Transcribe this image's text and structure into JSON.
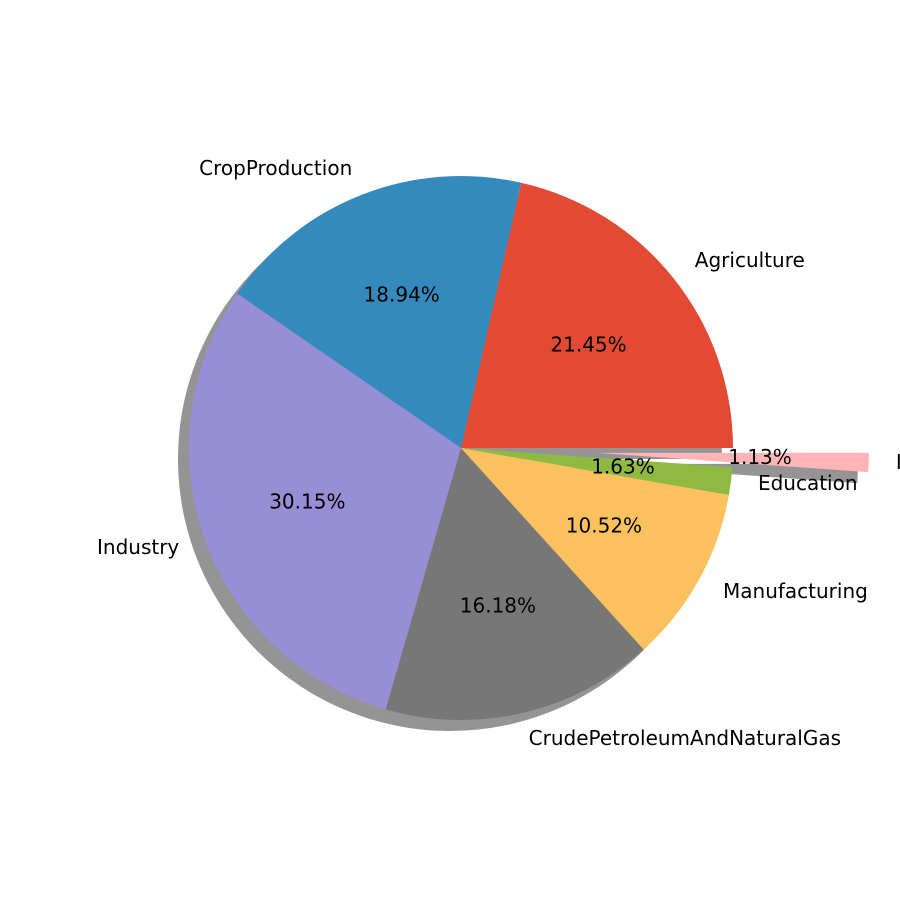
{
  "chart_data": {
    "type": "pie",
    "title": "",
    "shadow": true,
    "labels": [
      "Agriculture",
      "CropProduction",
      "Industry",
      "CrudePetroleumAndNaturalGas",
      "Manufacturing",
      "Education",
      "I"
    ],
    "values": [
      21.45,
      18.94,
      30.15,
      16.18,
      10.52,
      1.63,
      1.13
    ],
    "percent_labels": [
      "21.45%",
      "18.94%",
      "30.15%",
      "16.18%",
      "10.52%",
      "1.63%",
      "1.13%"
    ],
    "colors": [
      "#E24A33",
      "#348ABD",
      "#988ED5",
      "#777777",
      "#FBC15E",
      "#8EBA42",
      "#FFB5B8"
    ],
    "exploded_slices": [
      "I"
    ]
  }
}
